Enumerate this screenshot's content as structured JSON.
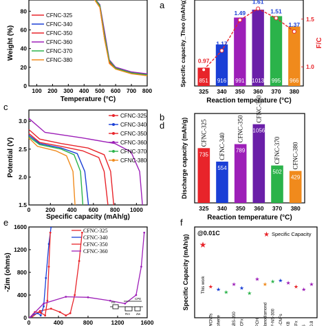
{
  "chart_data": [
    {
      "panel_label": "a",
      "type": "line",
      "xlabel": "Temperature (°C)",
      "ylabel": "Weight (%)",
      "xlim": [
        50,
        800
      ],
      "ylim": [
        0,
        120
      ],
      "xticks": [
        100,
        200,
        300,
        400,
        500,
        600,
        700,
        800
      ],
      "yticks": [
        0,
        20,
        40,
        60,
        80,
        100
      ],
      "legend_placement": "top-left",
      "series": [
        {
          "name": "CFNC-325",
          "color": "#e8242a",
          "x": [
            50,
            300,
            400,
            460,
            500,
            530,
            560,
            600,
            700,
            800
          ],
          "y": [
            100,
            99,
            97,
            94,
            84,
            50,
            25,
            19,
            14,
            11
          ]
        },
        {
          "name": "CFNC-340",
          "color": "#1a3fd6",
          "x": [
            50,
            300,
            400,
            460,
            500,
            530,
            560,
            600,
            700,
            800
          ],
          "y": [
            100,
            99,
            97,
            95,
            86,
            55,
            27,
            20,
            15,
            12
          ]
        },
        {
          "name": "CFNC-350",
          "color": "#e8242a",
          "x": [
            50,
            300,
            400,
            460,
            500,
            530,
            560,
            600,
            700,
            800
          ],
          "y": [
            100,
            99,
            97,
            94,
            85,
            52,
            26,
            19,
            14,
            12
          ]
        },
        {
          "name": "CFNC-360",
          "color": "#9d1fb8",
          "x": [
            50,
            300,
            400,
            460,
            500,
            530,
            560,
            600,
            700,
            800
          ],
          "y": [
            100,
            99,
            97,
            95,
            87,
            58,
            28,
            20,
            15,
            13
          ]
        },
        {
          "name": "CFNC-370",
          "color": "#2bb34a",
          "x": [
            50,
            300,
            400,
            460,
            500,
            530,
            560,
            600,
            700,
            800
          ],
          "y": [
            100,
            99,
            97,
            95,
            86,
            54,
            27,
            19,
            14,
            12
          ]
        },
        {
          "name": "CFNC-380",
          "color": "#f08a1c",
          "x": [
            50,
            300,
            400,
            460,
            500,
            530,
            560,
            600,
            700,
            800
          ],
          "y": [
            100,
            99,
            97,
            94,
            84,
            50,
            24,
            18,
            13,
            11
          ]
        }
      ]
    },
    {
      "panel_label": "b",
      "type": "bar",
      "xlabel": "Reaction temperature (°C)",
      "ylabel": "Specific capacity_Theo (mAh/g)",
      "ylabel_right": "F/C",
      "categories": [
        "325",
        "340",
        "350",
        "360",
        "370",
        "380"
      ],
      "values": [
        851,
        916,
        991,
        1013,
        995,
        966
      ],
      "bar_colors": [
        "#e8242a",
        "#1a3fd6",
        "#9d1fb8",
        "#6a1fa8",
        "#2bb34a",
        "#f08a1c"
      ],
      "ylim": [
        800,
        1040
      ],
      "line_series": {
        "name": "F/C",
        "color": "#e8242a",
        "values": [
          0.97,
          1.17,
          1.49,
          1.61,
          1.51,
          1.37
        ],
        "ylim": [
          0.8,
          1.7
        ],
        "yticks": [
          "1.0",
          "1.5"
        ]
      }
    },
    {
      "panel_label": "c",
      "type": "line",
      "xlabel": "Specific capacity (mAh/g)",
      "ylabel": "Potential (V)",
      "xlim": [
        0,
        1100
      ],
      "ylim": [
        1.5,
        3.2
      ],
      "xticks": [
        0,
        200,
        400,
        600,
        800,
        1000
      ],
      "yticks": [
        "1.5",
        "2.0",
        "2.5",
        "3.0"
      ],
      "legend_placement": "top-right",
      "series": [
        {
          "name": "CFNC-325",
          "color": "#e8242a",
          "x": [
            0,
            100,
            300,
            500,
            650,
            700,
            735
          ],
          "y": [
            2.78,
            2.62,
            2.55,
            2.47,
            2.35,
            2.1,
            1.5
          ]
        },
        {
          "name": "CFNC-340",
          "color": "#1a3fd6",
          "x": [
            0,
            100,
            300,
            450,
            520,
            554
          ],
          "y": [
            2.75,
            2.6,
            2.52,
            2.42,
            2.1,
            1.5
          ]
        },
        {
          "name": "CFNC-350",
          "color": "#e8242a",
          "x": [
            0,
            100,
            300,
            550,
            700,
            760,
            789
          ],
          "y": [
            2.85,
            2.68,
            2.6,
            2.52,
            2.4,
            2.1,
            1.5
          ]
        },
        {
          "name": "CFNC-360",
          "color": "#9d1fb8",
          "x": [
            0,
            150,
            500,
            800,
            950,
            1030,
            1056
          ],
          "y": [
            3.05,
            2.8,
            2.7,
            2.6,
            2.45,
            2.1,
            1.5
          ]
        },
        {
          "name": "CFNC-370",
          "color": "#2bb34a",
          "x": [
            0,
            100,
            300,
            420,
            480,
            502
          ],
          "y": [
            2.72,
            2.58,
            2.5,
            2.4,
            2.1,
            1.5
          ]
        },
        {
          "name": "CFNC-380",
          "color": "#f08a1c",
          "x": [
            0,
            80,
            250,
            350,
            410,
            429
          ],
          "y": [
            2.7,
            2.55,
            2.47,
            2.38,
            2.1,
            1.5
          ]
        }
      ]
    },
    {
      "panel_label": "d",
      "type": "bar",
      "xlabel": "Reaction temperature (°C)",
      "ylabel": "Discharge capacity (mAh/g)",
      "categories": [
        "325",
        "340",
        "350",
        "360",
        "370",
        "380"
      ],
      "bar_labels": [
        "CFNC-325",
        "CFNC-340",
        "CFNC-350",
        "CFNC-360",
        "CFNC-370",
        "CFNC-380"
      ],
      "values": [
        735,
        554,
        789,
        1056,
        502,
        429
      ],
      "bar_colors": [
        "#e8242a",
        "#1a3fd6",
        "#9d1fb8",
        "#6a1fa8",
        "#2bb34a",
        "#f08a1c"
      ],
      "ylim": [
        0,
        1200
      ]
    },
    {
      "panel_label": "e",
      "type": "line",
      "xlabel": "Zre (ohms)",
      "ylabel": "-Zim (ohms)",
      "xlim": [
        0,
        1600
      ],
      "ylim": [
        0,
        1600
      ],
      "xticks": [
        0,
        400,
        800,
        1200,
        1600
      ],
      "yticks": [
        0,
        400,
        800,
        1200,
        1600
      ],
      "legend_placement": "top-left",
      "series": [
        {
          "name": "CFNC-325",
          "color": "#e8242a",
          "x": [
            30,
            150,
            300,
            420,
            500,
            560,
            620,
            680,
            720
          ],
          "y": [
            0,
            120,
            160,
            100,
            40,
            80,
            400,
            1000,
            1500
          ]
        },
        {
          "name": "CFNC-340",
          "color": "#1a3fd6",
          "x": [
            20,
            60,
            120,
            160,
            200,
            230,
            270,
            300
          ],
          "y": [
            0,
            60,
            80,
            40,
            200,
            700,
            1300,
            1600
          ]
        },
        {
          "name": "CFNC-350",
          "color": "#e8242a",
          "x": [
            10,
            80,
            160,
            220,
            250,
            270,
            290
          ],
          "y": [
            0,
            100,
            90,
            40,
            300,
            900,
            1500
          ]
        },
        {
          "name": "CFNC-360",
          "color": "#9d1fb8",
          "x": [
            10,
            200,
            500,
            800,
            1100,
            1300,
            1450,
            1520,
            1560
          ],
          "y": [
            0,
            250,
            370,
            360,
            300,
            250,
            400,
            900,
            1500
          ]
        }
      ],
      "circuit_labels": [
        "Rs",
        "Rct",
        "CPE",
        "Zw"
      ]
    },
    {
      "panel_label": "f",
      "type": "scatter",
      "ylabel": "Specific Capacity (mAh/g)",
      "annotation": "@0.01C",
      "legend_entries": [
        "Specific Capacity"
      ],
      "this_work_label": "This work",
      "points": [
        {
          "label": "This work",
          "value": 1056,
          "color": "#e8242a"
        },
        {
          "label": "F-MWCNTs",
          "value": 740,
          "color": "#e8242a"
        },
        {
          "label": "F-Graphene",
          "value": 720,
          "color": "#1a3fd6"
        },
        {
          "label": "FG-850",
          "value": 700,
          "color": "#2bb34a"
        },
        {
          "label": "Z-ABS-200",
          "value": 760,
          "color": "#9d1fb8"
        },
        {
          "label": "Ultra CFx",
          "value": 730,
          "color": "#1a3fd6"
        },
        {
          "label": "CFx",
          "value": 690,
          "color": "#2bb34a"
        },
        {
          "label": "PCH",
          "value": 800,
          "color": "#9d1fb8"
        },
        {
          "label": "F-Nanodiamond",
          "value": 760,
          "color": "#f08a1c"
        },
        {
          "label": "CF-NS-300",
          "value": 780,
          "color": "#2bb34a"
        },
        {
          "label": "F-CNFs",
          "value": 790,
          "color": "#1a3fd6"
        },
        {
          "label": "F-KB",
          "value": 770,
          "color": "#9d1fb8"
        },
        {
          "label": "LB-CFx",
          "value": 740,
          "color": "#e8242a"
        },
        {
          "label": "F-CNS",
          "value": 720,
          "color": "#9d1fb8"
        },
        {
          "label": "CF0.8",
          "value": 760,
          "color": "#9d1fb8"
        }
      ]
    }
  ]
}
